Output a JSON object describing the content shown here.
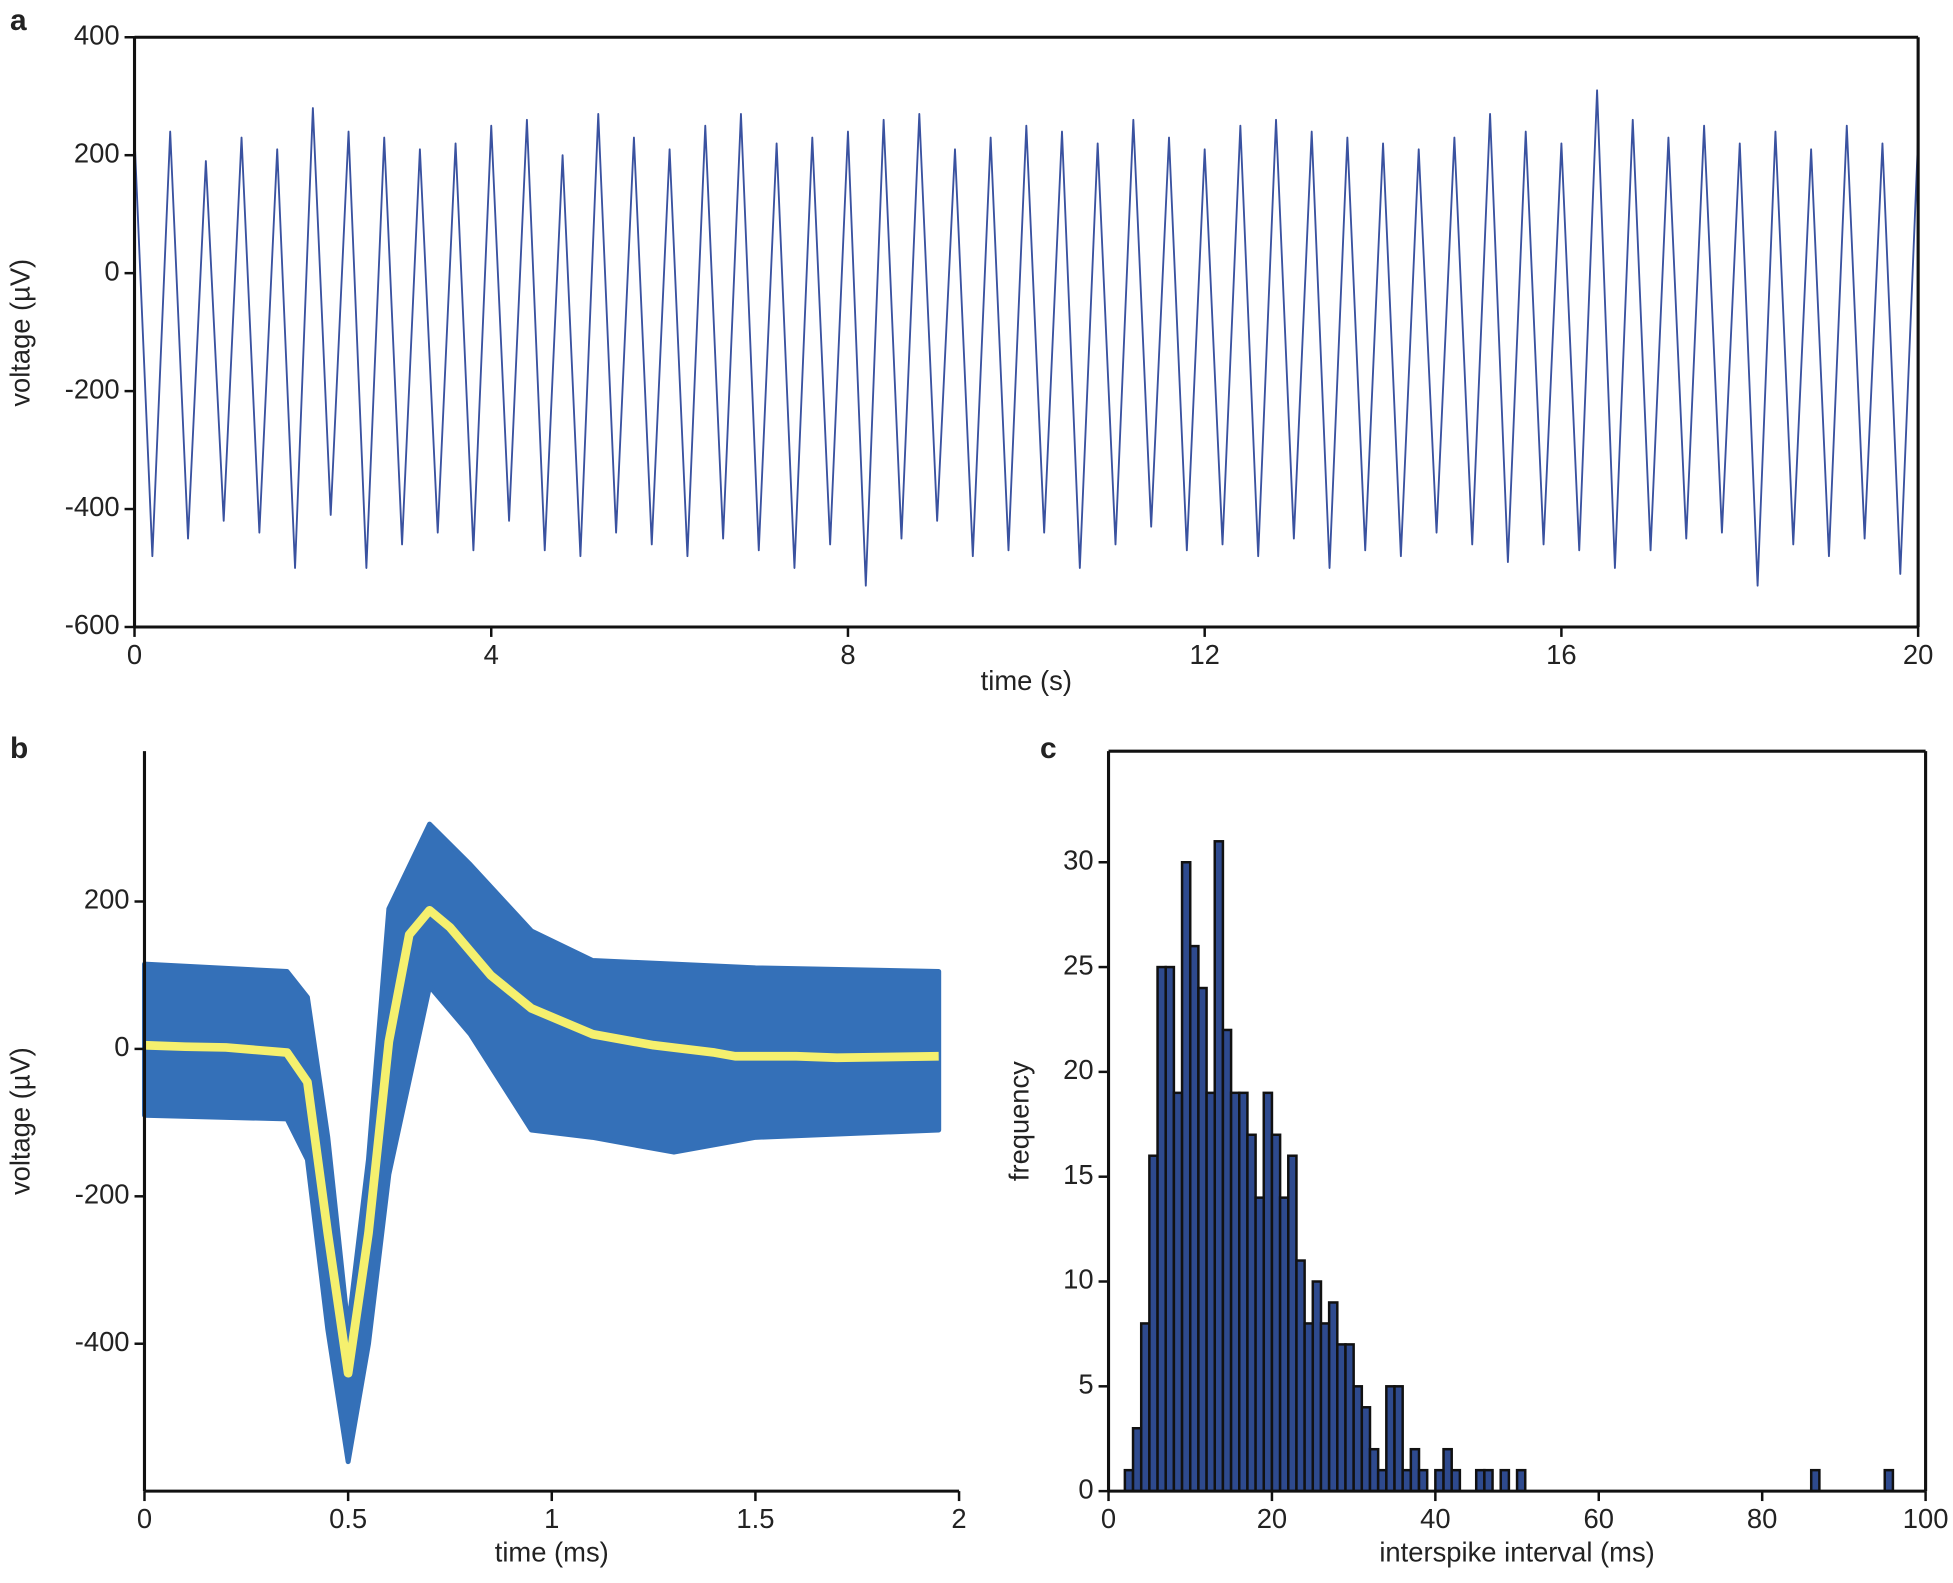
{
  "chart_data": [
    {
      "type": "line",
      "panel": "a",
      "xlabel": "time (s)",
      "ylabel": "voltage (µV)",
      "xlim": [
        0,
        20
      ],
      "xticks": [
        0,
        4,
        8,
        12,
        16,
        20
      ],
      "ylim": [
        -600,
        400
      ],
      "yticks": [
        -600,
        -400,
        -200,
        0,
        200,
        400
      ],
      "box": true,
      "x": [
        0,
        0.2,
        0.4,
        0.6,
        0.8,
        1,
        1.2,
        1.4,
        1.6,
        1.8,
        2,
        2.2,
        2.4,
        2.6,
        2.8,
        3,
        3.2,
        3.4,
        3.6,
        3.8,
        4,
        4.2,
        4.4,
        4.6,
        4.8,
        5,
        5.2,
        5.4,
        5.6,
        5.8,
        6,
        6.2,
        6.4,
        6.6,
        6.8,
        7,
        7.2,
        7.4,
        7.6,
        7.8,
        8,
        8.2,
        8.4,
        8.6,
        8.8,
        9,
        9.2,
        9.4,
        9.6,
        9.8,
        10,
        10.2,
        10.4,
        10.6,
        10.8,
        11,
        11.2,
        11.4,
        11.6,
        11.8,
        12,
        12.2,
        12.4,
        12.6,
        12.8,
        13,
        13.2,
        13.4,
        13.6,
        13.8,
        14,
        14.2,
        14.4,
        14.6,
        14.8,
        15,
        15.2,
        15.4,
        15.6,
        15.8,
        16,
        16.2,
        16.4,
        16.6,
        16.8,
        17,
        17.2,
        17.4,
        17.6,
        17.8,
        18,
        18.2,
        18.4,
        18.6,
        18.8,
        19,
        19.2,
        19.4,
        19.6,
        19.8,
        20
      ],
      "series": [
        {
          "color": "#3a52a0",
          "width": 1.5,
          "values": [
            230,
            -480,
            240,
            -450,
            190,
            -420,
            230,
            -440,
            210,
            -500,
            280,
            -410,
            240,
            -500,
            230,
            -460,
            210,
            -440,
            220,
            -470,
            250,
            -420,
            260,
            -470,
            200,
            -480,
            270,
            -440,
            230,
            -460,
            210,
            -480,
            250,
            -450,
            270,
            -470,
            220,
            -500,
            230,
            -460,
            240,
            -530,
            260,
            -450,
            270,
            -420,
            210,
            -480,
            230,
            -470,
            250,
            -440,
            240,
            -500,
            220,
            -460,
            260,
            -430,
            230,
            -470,
            210,
            -460,
            250,
            -480,
            260,
            -450,
            240,
            -500,
            230,
            -470,
            220,
            -480,
            210,
            -440,
            230,
            -460,
            270,
            -490,
            240,
            -460,
            220,
            -470,
            310,
            -500,
            260,
            -470,
            230,
            -450,
            250,
            -440,
            220,
            -530,
            240,
            -460,
            210,
            -480,
            250,
            -450,
            220,
            -510,
            230
          ]
        }
      ]
    },
    {
      "type": "line",
      "panel": "b",
      "xlabel": "time (ms)",
      "ylabel": "voltage (µV)",
      "xlim": [
        0,
        2
      ],
      "xticks": [
        0,
        0.5,
        1,
        1.5,
        2
      ],
      "ylim": [
        -600,
        404
      ],
      "yticks": [
        -400,
        -200,
        0,
        200
      ],
      "box": false,
      "series": [
        {
          "color": "#3470b8",
          "width": 4,
          "x": [
            0,
            0.35,
            0.4,
            0.45,
            0.5,
            0.55,
            0.6,
            0.7,
            0.8,
            0.95,
            1.1,
            1.3,
            1.5,
            1.95
          ],
          "values": [
            115,
            105,
            70,
            -120,
            -380,
            -150,
            190,
            305,
            250,
            160,
            120,
            115,
            110,
            105
          ],
          "lows": [
            -90,
            -95,
            -150,
            -380,
            -560,
            -400,
            -170,
            85,
            20,
            -110,
            -120,
            -140,
            -120,
            -110
          ]
        },
        {
          "color": "#f5f06e",
          "width": 7,
          "x": [
            0,
            0.1,
            0.2,
            0.35,
            0.4,
            0.45,
            0.5,
            0.55,
            0.6,
            0.65,
            0.7,
            0.75,
            0.85,
            0.95,
            1.1,
            1.25,
            1.4,
            1.45,
            1.6,
            1.7,
            1.95
          ],
          "values": [
            5,
            3,
            2,
            -5,
            -45,
            -250,
            -440,
            -250,
            10,
            155,
            188,
            165,
            100,
            55,
            20,
            5,
            -5,
            -10,
            -10,
            -12,
            -10
          ]
        }
      ]
    },
    {
      "type": "histogram",
      "panel": "c",
      "xlabel": "interspike interval (ms)",
      "ylabel": "frequency",
      "xlim": [
        0,
        100
      ],
      "xticks": [
        0,
        20,
        40,
        60,
        80,
        100
      ],
      "ylim": [
        0,
        35.3
      ],
      "yticks": [
        0,
        5,
        10,
        15,
        20,
        25,
        30
      ],
      "box": true,
      "color": "#2e4a8e",
      "bins": [
        0,
        1,
        2,
        3,
        4,
        5,
        6,
        7,
        8,
        9,
        10,
        11,
        12,
        13,
        14,
        15,
        16,
        17,
        18,
        19,
        20,
        21,
        22,
        23,
        24,
        25,
        26,
        27,
        28,
        29,
        30,
        31,
        32,
        33,
        34,
        35,
        36,
        37,
        38,
        39,
        40,
        41,
        42,
        43,
        44,
        45,
        46,
        47,
        48,
        49,
        50,
        51,
        52,
        53,
        54,
        55,
        56,
        57,
        58,
        59,
        60,
        61,
        62,
        63,
        64,
        65,
        66,
        67,
        68,
        69,
        70,
        71,
        72,
        73,
        74,
        75,
        76,
        77,
        78,
        79,
        80,
        81,
        82,
        83,
        84,
        85,
        86,
        87,
        88,
        89,
        90,
        91,
        92,
        93,
        94,
        95,
        96,
        97,
        98,
        99,
        100
      ],
      "values": [
        0,
        0,
        1,
        3,
        8,
        16,
        25,
        25,
        19,
        30,
        26,
        24,
        19,
        31,
        22,
        19,
        19,
        17,
        14,
        19,
        17,
        14,
        16,
        11,
        8,
        10,
        8,
        9,
        7,
        7,
        5,
        4,
        2,
        1,
        5,
        5,
        1,
        2,
        1,
        0,
        1,
        2,
        1,
        0,
        0,
        1,
        1,
        0,
        1,
        0,
        1,
        0,
        0,
        0,
        0,
        0,
        0,
        0,
        0,
        0,
        0,
        0,
        0,
        0,
        0,
        0,
        0,
        0,
        0,
        0,
        0,
        0,
        0,
        0,
        0,
        0,
        0,
        0,
        0,
        0,
        0,
        0,
        0,
        0,
        0,
        0,
        1,
        0,
        0,
        0,
        0,
        0,
        0,
        0,
        0,
        1,
        0,
        0,
        0,
        0
      ]
    }
  ]
}
